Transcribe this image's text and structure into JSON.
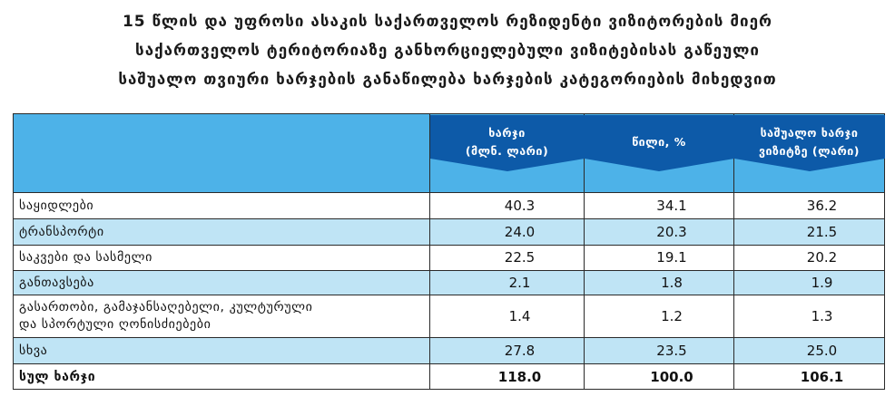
{
  "title": {
    "line1": "15 წლის და უფროსი ასაკის საქართველოს რეზიდენტი ვიზიტორების მიერ",
    "line2": "საქართველოს ტერიტორიაზე განხორციელებული ვიზიტებისას გაწეული",
    "line3": "საშუალო თვიური ხარჯების განაწილება ხარჯების კატეგორიების მიხედვით"
  },
  "columns": {
    "col1": [
      "ხარჯი",
      "(მლნ. ლარი)"
    ],
    "col2": [
      "წილი, %"
    ],
    "col3": [
      "საშუალო ხარჯი",
      "ვიზიტზე (ლარი)"
    ]
  },
  "colors": {
    "header": "#4db2e8",
    "header_arrow": "#0d5aa8",
    "row_alt": "#bfe4f5"
  },
  "rows": [
    {
      "label": "საყიდლები",
      "expense": "40.3",
      "share": "34.1",
      "avg": "36.2"
    },
    {
      "label": "ტრანსპორტი",
      "expense": "24.0",
      "share": "20.3",
      "avg": "21.5"
    },
    {
      "label": "საკვები და სასმელი",
      "expense": "22.5",
      "share": "19.1",
      "avg": "20.2"
    },
    {
      "label": "განთავსება",
      "expense": "2.1",
      "share": "1.8",
      "avg": "1.9"
    },
    {
      "label_line1": "გასართობი, გამაჯანსაღებელი, კულტურული",
      "label_line2": "და სპორტული ღონისძიებები",
      "expense": "1.4",
      "share": "1.2",
      "avg": "1.3"
    },
    {
      "label": "სხვა",
      "expense": "27.8",
      "share": "23.5",
      "avg": "25.0"
    }
  ],
  "total": {
    "label": "სულ ხარჯი",
    "expense": "118.0",
    "share": "100.0",
    "avg": "106.1"
  }
}
